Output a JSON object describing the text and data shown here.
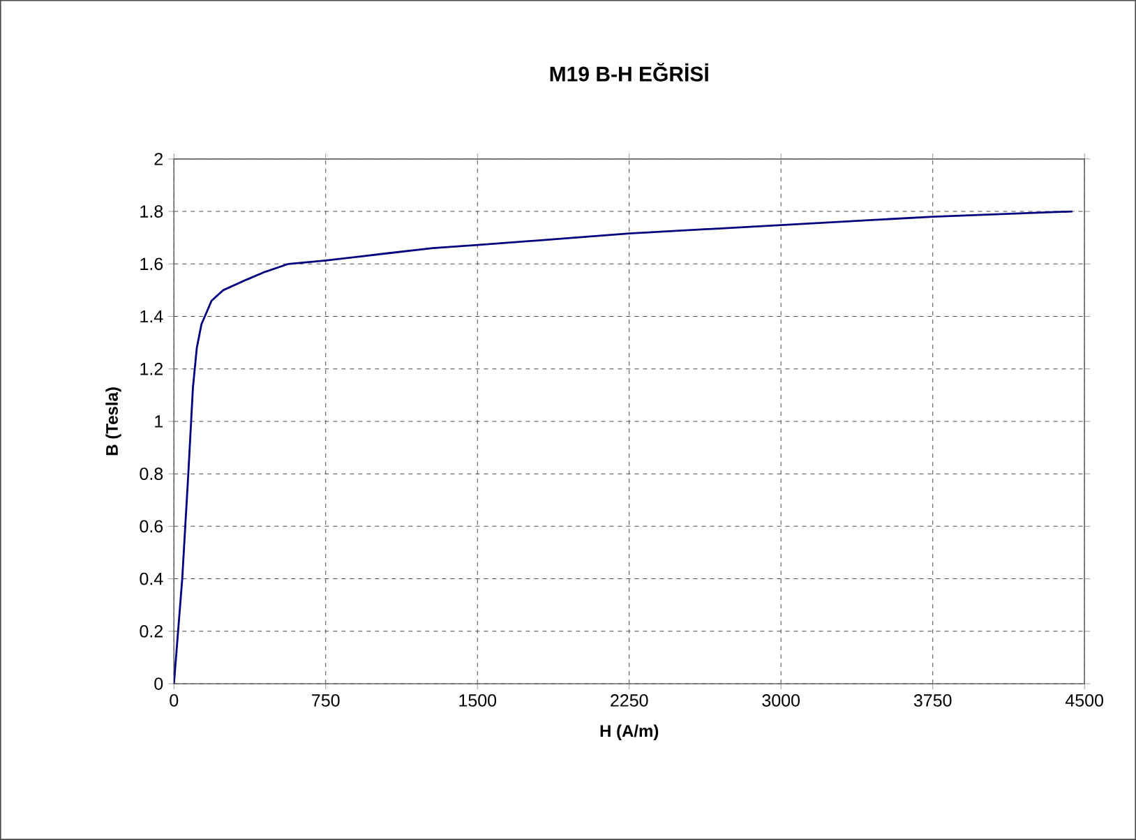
{
  "chart_data": {
    "type": "line",
    "title": "M19 B-H EĞRİSİ",
    "xlabel": "H (A/m)",
    "ylabel": "B (Tesla)",
    "series": [
      {
        "color": "#000080",
        "x": [
          0,
          41,
          71,
          94,
          113,
          136,
          186,
          244,
          359,
          451,
          566,
          750,
          1049,
          1279,
          1500,
          2250,
          3000,
          3750,
          4440
        ],
        "values": [
          0,
          0.4,
          0.8,
          1.13,
          1.28,
          1.37,
          1.46,
          1.5,
          1.54,
          1.57,
          1.6,
          1.613,
          1.64,
          1.66,
          1.672,
          1.716,
          1.748,
          1.78,
          1.8
        ]
      }
    ],
    "xlim": [
      0,
      4500
    ],
    "xticks": [
      0,
      750,
      1500,
      2250,
      3000,
      3750,
      4500
    ],
    "ylim": [
      0,
      2
    ],
    "yticks": [
      0,
      0.2,
      0.4,
      0.6,
      0.8,
      1,
      1.2,
      1.4,
      1.6,
      1.8,
      2
    ],
    "grid": true,
    "marker": "none",
    "line_style": "solid"
  }
}
